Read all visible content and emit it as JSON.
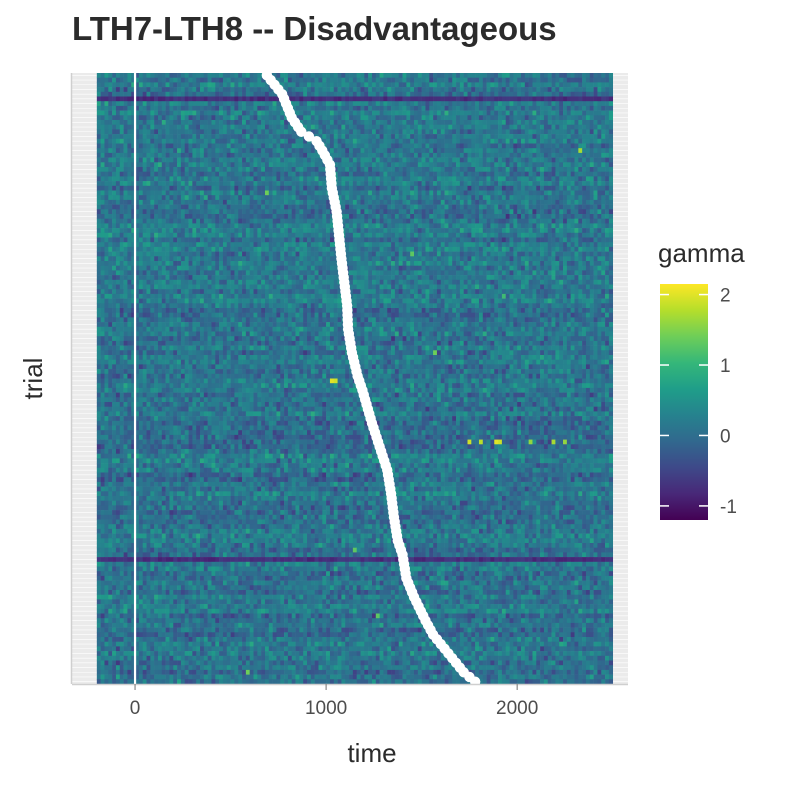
{
  "chart_data": {
    "type": "heatmap",
    "title": "LTH7-LTH8 -- Disadvantageous",
    "xlabel": "time",
    "ylabel": "trial",
    "xlim": [
      -330,
      2580
    ],
    "x_ticks": [
      0,
      1000,
      2000
    ],
    "x_tick_labels": [
      "0",
      "1000",
      "2000"
    ],
    "time_range": [
      -200,
      2500
    ],
    "n_trials": 130,
    "y_tick_labels": [],
    "vline_x": 0,
    "color_scale": {
      "name": "gamma",
      "palette": "viridis",
      "limits": [
        -1.2,
        2.15
      ],
      "breaks": [
        -1,
        0,
        1,
        2
      ],
      "break_labels": [
        "-1",
        "0",
        "1",
        "2"
      ],
      "colors": [
        "#440154",
        "#482878",
        "#3e4989",
        "#31688e",
        "#26828e",
        "#1f9e89",
        "#35b779",
        "#6ece58",
        "#b5de2b",
        "#fde725"
      ]
    },
    "response_times": [
      {
        "trial": 1,
        "time": 690
      },
      {
        "trial": 5,
        "time": 770
      },
      {
        "trial": 10,
        "time": 820
      },
      {
        "trial": 13,
        "time": 870
      },
      {
        "trial": 15,
        "time": 950
      },
      {
        "trial": 17,
        "time": 980
      },
      {
        "trial": 20,
        "time": 1020
      },
      {
        "trial": 25,
        "time": 1030
      },
      {
        "trial": 30,
        "time": 1055
      },
      {
        "trial": 40,
        "time": 1080
      },
      {
        "trial": 50,
        "time": 1110
      },
      {
        "trial": 55,
        "time": 1115
      },
      {
        "trial": 60,
        "time": 1135
      },
      {
        "trial": 65,
        "time": 1165
      },
      {
        "trial": 68,
        "time": 1190
      },
      {
        "trial": 75,
        "time": 1240
      },
      {
        "trial": 80,
        "time": 1280
      },
      {
        "trial": 85,
        "time": 1320
      },
      {
        "trial": 90,
        "time": 1340
      },
      {
        "trial": 95,
        "time": 1355
      },
      {
        "trial": 100,
        "time": 1375
      },
      {
        "trial": 103,
        "time": 1400
      },
      {
        "trial": 108,
        "time": 1420
      },
      {
        "trial": 112,
        "time": 1460
      },
      {
        "trial": 117,
        "time": 1520
      },
      {
        "trial": 120,
        "time": 1560
      },
      {
        "trial": 123,
        "time": 1620
      },
      {
        "trial": 126,
        "time": 1680
      },
      {
        "trial": 128,
        "time": 1720
      },
      {
        "trial": 130,
        "time": 1780
      }
    ],
    "hot_spots": [
      {
        "trial": 17,
        "time": 2310,
        "value": 1.7
      },
      {
        "trial": 26,
        "time": 680,
        "value": 1.4
      },
      {
        "trial": 39,
        "time": 1440,
        "value": 1.3
      },
      {
        "trial": 48,
        "time": 1920,
        "value": 1.1
      },
      {
        "trial": 66,
        "time": 1010,
        "value": 2.0
      },
      {
        "trial": 66,
        "time": 1030,
        "value": 1.9
      },
      {
        "trial": 79,
        "time": 1730,
        "value": 1.9
      },
      {
        "trial": 79,
        "time": 1800,
        "value": 1.8
      },
      {
        "trial": 79,
        "time": 1870,
        "value": 2.0
      },
      {
        "trial": 79,
        "time": 1890,
        "value": 1.9
      },
      {
        "trial": 79,
        "time": 2050,
        "value": 1.6
      },
      {
        "trial": 79,
        "time": 2180,
        "value": 1.7
      },
      {
        "trial": 79,
        "time": 2240,
        "value": 1.6
      },
      {
        "trial": 60,
        "time": 1560,
        "value": 1.4
      },
      {
        "trial": 102,
        "time": 1130,
        "value": 1.3
      },
      {
        "trial": 116,
        "time": 1260,
        "value": 1.3
      },
      {
        "trial": 128,
        "time": 580,
        "value": 1.4
      }
    ],
    "dark_rows": [
      6,
      104
    ],
    "grid": true
  }
}
